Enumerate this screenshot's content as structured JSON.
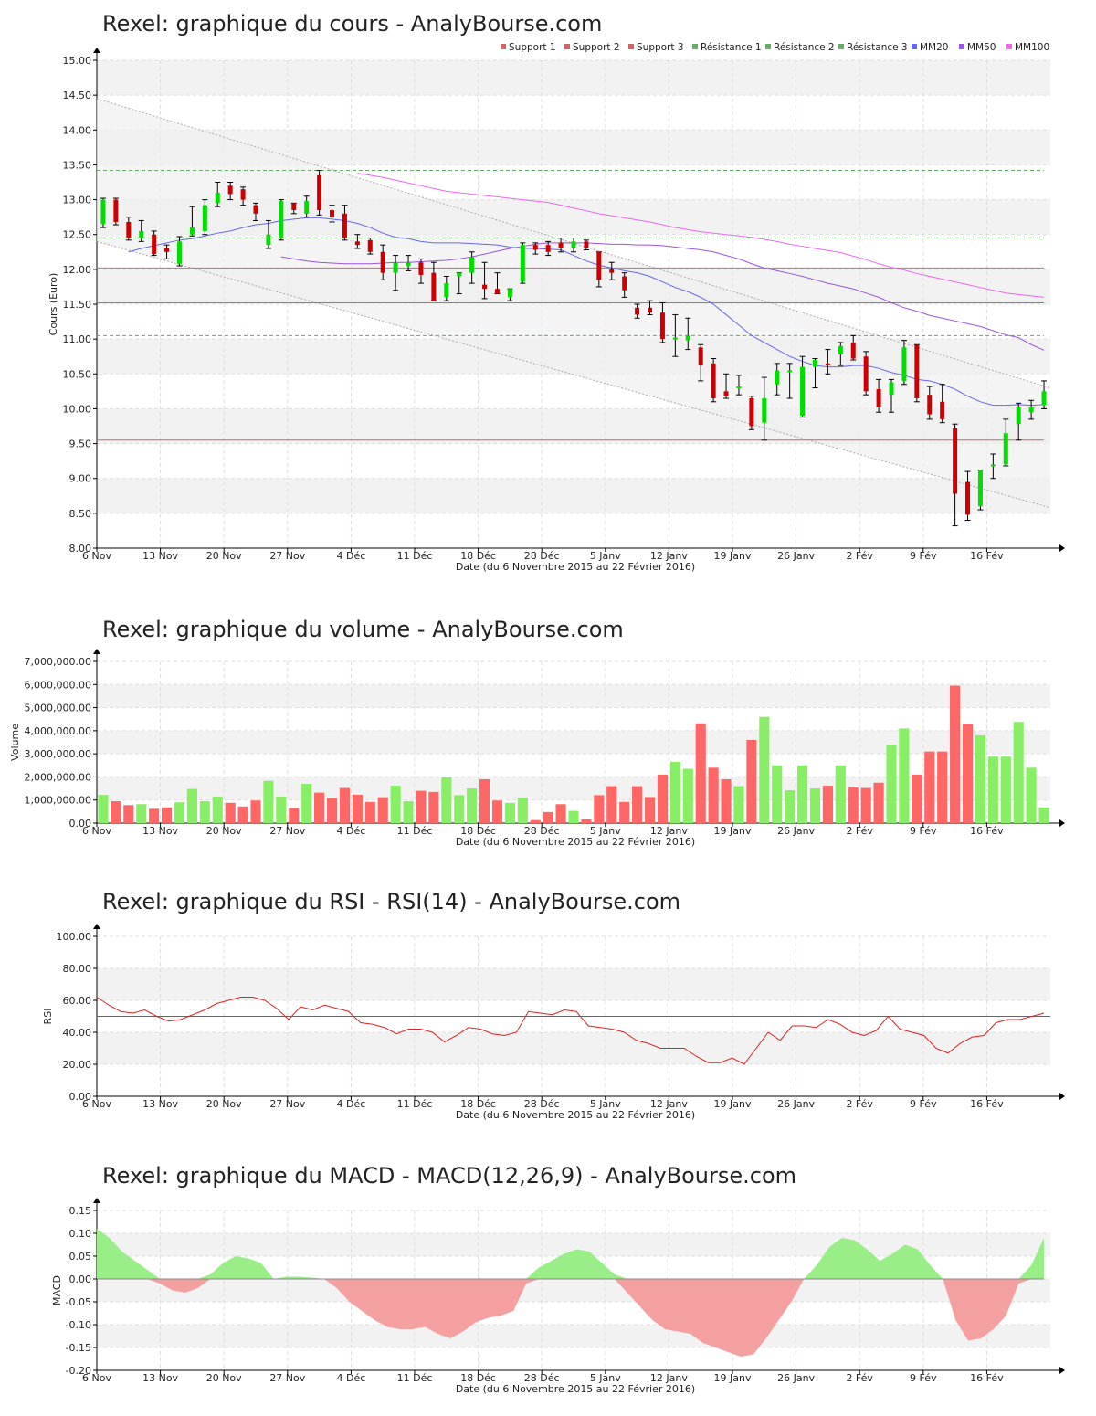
{
  "xaxis": {
    "tick_labels": [
      "6 Nov",
      "13 Nov",
      "20 Nov",
      "27 Nov",
      "4 Déc",
      "11 Déc",
      "18 Déc",
      "28 Déc",
      "5 Janv",
      "12 Janv",
      "19 Janv",
      "26 Janv",
      "2 Fév",
      "9 Fév",
      "16 Fév"
    ],
    "tick_index": [
      0,
      5,
      10,
      15,
      20,
      25,
      30,
      35,
      40,
      45,
      50,
      55,
      60,
      65,
      70
    ],
    "label": "Date (du 6 Novembre 2015 au 22 Février 2016)"
  },
  "colors": {
    "up": "#00dd00",
    "down": "#cc0000",
    "vol_up": "#88ee66",
    "vol_down": "#ff6666",
    "mm20": "#6666ee",
    "mm50": "#9955dd",
    "mm100": "#ee66ee",
    "support": "#cc6666",
    "resistance": "#66aa66",
    "rsi": "#dd2222",
    "macd_pos": "#99ee88",
    "macd_neg": "#f4a0a0"
  },
  "chart_data": [
    {
      "type": "candlestick",
      "title": "Rexel: graphique du cours - AnalyBourse.com",
      "ylabel": "Cours (Euro)",
      "ylim": [
        8,
        15
      ],
      "yticks": [
        "8.00",
        "8.50",
        "9.00",
        "9.50",
        "10.00",
        "10.50",
        "11.00",
        "11.50",
        "12.00",
        "12.50",
        "13.00",
        "13.50",
        "14.00",
        "14.50",
        "15.00"
      ],
      "legend": [
        "Support 1",
        "Support 2",
        "Support 3",
        "Résistance 1",
        "Résistance 2",
        "Résistance 3",
        "MM20",
        "MM50",
        "MM100"
      ],
      "legend_position": "top-right",
      "support_levels": [
        12.02,
        11.52,
        9.55
      ],
      "resistance_levels": [
        13.42,
        12.45,
        11.05
      ],
      "channel": {
        "upper": [
          14.45,
          10.3
        ],
        "lower": [
          12.4,
          8.58
        ]
      },
      "ohlc": [
        [
          12.65,
          13.02,
          12.6,
          13.0
        ],
        [
          13.0,
          13.02,
          12.64,
          12.68
        ],
        [
          12.68,
          12.75,
          12.42,
          12.45
        ],
        [
          12.45,
          12.7,
          12.4,
          12.55
        ],
        [
          12.5,
          12.55,
          12.2,
          12.22
        ],
        [
          12.3,
          12.35,
          12.15,
          12.25
        ],
        [
          12.08,
          12.47,
          12.05,
          12.4
        ],
        [
          12.5,
          12.9,
          12.48,
          12.6
        ],
        [
          12.55,
          13.0,
          12.5,
          12.92
        ],
        [
          12.95,
          13.25,
          12.9,
          13.1
        ],
        [
          13.2,
          13.25,
          13.0,
          13.08
        ],
        [
          13.15,
          13.18,
          12.92,
          13.0
        ],
        [
          12.92,
          12.95,
          12.7,
          12.8
        ],
        [
          12.35,
          12.7,
          12.3,
          12.5
        ],
        [
          12.45,
          13.0,
          12.42,
          12.98
        ],
        [
          12.95,
          12.95,
          12.8,
          12.85
        ],
        [
          12.8,
          13.05,
          12.75,
          12.98
        ],
        [
          13.35,
          13.42,
          12.78,
          12.85
        ],
        [
          12.85,
          12.92,
          12.68,
          12.75
        ],
        [
          12.8,
          12.92,
          12.42,
          12.45
        ],
        [
          12.4,
          12.5,
          12.3,
          12.35
        ],
        [
          12.42,
          12.45,
          12.22,
          12.25
        ],
        [
          12.25,
          12.35,
          11.85,
          11.95
        ],
        [
          11.95,
          12.2,
          11.7,
          12.1
        ],
        [
          12.05,
          12.2,
          11.98,
          12.1
        ],
        [
          12.1,
          12.15,
          11.8,
          11.92
        ],
        [
          11.95,
          12.1,
          11.55,
          11.55
        ],
        [
          11.6,
          11.9,
          11.55,
          11.8
        ],
        [
          11.9,
          11.95,
          11.65,
          11.95
        ],
        [
          11.95,
          12.25,
          11.8,
          12.18
        ],
        [
          11.78,
          12.1,
          11.58,
          11.72
        ],
        [
          11.72,
          11.95,
          11.65,
          11.65
        ],
        [
          11.6,
          11.72,
          11.55,
          11.72
        ],
        [
          11.82,
          12.38,
          11.8,
          12.35
        ],
        [
          12.35,
          12.38,
          12.22,
          12.28
        ],
        [
          12.35,
          12.4,
          12.2,
          12.25
        ],
        [
          12.38,
          12.45,
          12.25,
          12.3
        ],
        [
          12.3,
          12.45,
          12.25,
          12.4
        ],
        [
          12.4,
          12.42,
          12.28,
          12.3
        ],
        [
          12.25,
          12.25,
          11.75,
          11.85
        ],
        [
          12.0,
          12.1,
          11.85,
          11.95
        ],
        [
          11.9,
          11.95,
          11.6,
          11.7
        ],
        [
          11.45,
          11.5,
          11.3,
          11.35
        ],
        [
          11.45,
          11.55,
          11.35,
          11.38
        ],
        [
          11.38,
          11.52,
          10.95,
          11.0
        ],
        [
          11.0,
          11.35,
          10.75,
          11.02
        ],
        [
          10.98,
          11.3,
          10.85,
          11.05
        ],
        [
          10.88,
          10.92,
          10.4,
          10.62
        ],
        [
          10.65,
          10.72,
          10.1,
          10.15
        ],
        [
          10.25,
          10.5,
          10.15,
          10.18
        ],
        [
          10.3,
          10.48,
          10.2,
          10.32
        ],
        [
          10.15,
          10.18,
          9.7,
          9.75
        ],
        [
          9.8,
          10.45,
          9.55,
          10.15
        ],
        [
          10.35,
          10.65,
          10.2,
          10.55
        ],
        [
          10.55,
          10.65,
          10.15,
          10.55
        ],
        [
          9.9,
          10.75,
          9.88,
          10.6
        ],
        [
          10.6,
          10.72,
          10.3,
          10.7
        ],
        [
          10.65,
          10.85,
          10.5,
          10.62
        ],
        [
          10.78,
          10.95,
          10.62,
          10.9
        ],
        [
          10.95,
          11.05,
          10.7,
          10.72
        ],
        [
          10.75,
          10.82,
          10.2,
          10.25
        ],
        [
          10.28,
          10.42,
          9.95,
          10.02
        ],
        [
          10.2,
          10.42,
          9.95,
          10.38
        ],
        [
          10.4,
          10.98,
          10.35,
          10.88
        ],
        [
          10.92,
          10.92,
          10.1,
          10.15
        ],
        [
          10.2,
          10.32,
          9.85,
          9.92
        ],
        [
          10.1,
          10.35,
          9.8,
          9.85
        ],
        [
          9.72,
          9.78,
          8.32,
          8.78
        ],
        [
          8.95,
          9.1,
          8.4,
          8.48
        ],
        [
          8.6,
          9.12,
          8.55,
          9.12
        ],
        [
          9.2,
          9.35,
          9.0,
          9.2
        ],
        [
          9.2,
          9.85,
          9.18,
          9.65
        ],
        [
          9.78,
          10.08,
          9.55,
          10.02
        ],
        [
          9.95,
          10.12,
          9.85,
          10.02
        ],
        [
          10.05,
          10.4,
          10.0,
          10.25
        ]
      ],
      "mm20": [
        12.25,
        12.3,
        12.34,
        12.38,
        12.42,
        12.44,
        12.48,
        12.52,
        12.55,
        12.6,
        12.64,
        12.66,
        12.7,
        12.72,
        12.74,
        12.74,
        12.72,
        12.7,
        12.66,
        12.6,
        12.52,
        12.46,
        12.44,
        12.4,
        12.38,
        12.38,
        12.38,
        12.37,
        12.36,
        12.35,
        12.32,
        12.3,
        12.3,
        12.29,
        12.28,
        12.2,
        12.12,
        12.06,
        12.02,
        11.98,
        11.95,
        11.9,
        11.82,
        11.74,
        11.68,
        11.6,
        11.5,
        11.35,
        11.2,
        11.05,
        10.95,
        10.85,
        10.75,
        10.68,
        10.62,
        10.6,
        10.6,
        10.62,
        10.62,
        10.58,
        10.52,
        10.48,
        10.42,
        10.4,
        10.35,
        10.28,
        10.18,
        10.1,
        10.05,
        10.05,
        10.06,
        10.05,
        10.06
      ],
      "mm50": [
        12.18,
        12.15,
        12.12,
        12.1,
        12.09,
        12.08,
        12.08,
        12.08,
        12.09,
        12.1,
        12.1,
        12.11,
        12.12,
        12.13,
        12.15,
        12.18,
        12.22,
        12.26,
        12.3,
        12.33,
        12.36,
        12.38,
        12.38,
        12.38,
        12.38,
        12.37,
        12.36,
        12.36,
        12.35,
        12.35,
        12.34,
        12.32,
        12.3,
        12.28,
        12.25,
        12.2,
        12.15,
        12.08,
        12.02,
        11.98,
        11.94,
        11.9,
        11.85,
        11.8,
        11.76,
        11.72,
        11.66,
        11.6,
        11.52,
        11.45,
        11.4,
        11.34,
        11.3,
        11.26,
        11.22,
        11.18,
        11.12,
        11.06,
        11.02,
        10.92,
        10.84
      ],
      "mm100": [
        13.38,
        13.35,
        13.32,
        13.28,
        13.24,
        13.2,
        13.16,
        13.12,
        13.1,
        13.08,
        13.06,
        13.04,
        13.02,
        13.0,
        12.98,
        12.96,
        12.92,
        12.88,
        12.84,
        12.8,
        12.77,
        12.74,
        12.71,
        12.68,
        12.64,
        12.6,
        12.57,
        12.54,
        12.52,
        12.5,
        12.48,
        12.46,
        12.43,
        12.4,
        12.36,
        12.33,
        12.3,
        12.27,
        12.24,
        12.19,
        12.14,
        12.08,
        12.03,
        11.99,
        11.94,
        11.9,
        11.86,
        11.82,
        11.78,
        11.74,
        11.7,
        11.66,
        11.64,
        11.62,
        11.6
      ]
    },
    {
      "type": "bar",
      "title": "Rexel: graphique du volume - AnalyBourse.com",
      "ylabel": "Volume",
      "ylim": [
        0,
        7000000
      ],
      "yticks": [
        "0.00",
        "1,000,000.00",
        "2,000,000.00",
        "3,000,000.00",
        "4,000,000.00",
        "5,000,000.00",
        "6,000,000.00",
        "7,000,000.00"
      ],
      "values": [
        1220000,
        950000,
        780000,
        820000,
        620000,
        680000,
        900000,
        1480000,
        950000,
        1150000,
        880000,
        720000,
        980000,
        1830000,
        1150000,
        650000,
        1700000,
        1320000,
        1080000,
        1520000,
        1230000,
        920000,
        1120000,
        1620000,
        950000,
        1400000,
        1350000,
        1980000,
        1210000,
        1500000,
        1900000,
        980000,
        880000,
        1110000,
        130000,
        480000,
        820000,
        530000,
        170000,
        1210000,
        1600000,
        920000,
        1600000,
        1130000,
        2100000,
        2650000,
        2350000,
        4320000,
        2400000,
        1900000,
        1600000,
        3600000,
        4600000,
        2500000,
        1420000,
        2500000,
        1500000,
        1620000,
        2500000,
        1540000,
        1520000,
        1750000,
        3380000,
        4100000,
        2100000,
        3100000,
        3100000,
        5950000,
        4300000,
        3800000,
        2880000,
        2880000,
        4380000,
        2400000,
        680000
      ],
      "colors_by_candle": true
    },
    {
      "type": "line",
      "title": "Rexel: graphique du RSI - RSI(14) - AnalyBourse.com",
      "ylabel": "RSI",
      "ylim": [
        0,
        100
      ],
      "yticks": [
        "0.00",
        "20.00",
        "40.00",
        "60.00",
        "80.00",
        "100.00"
      ],
      "reference_line": 50,
      "values": [
        62,
        57,
        53,
        52,
        54,
        50,
        47,
        48,
        51,
        54,
        58,
        60,
        62,
        62,
        60,
        55,
        48,
        56,
        54,
        57,
        55,
        53,
        46,
        45,
        43,
        39,
        42,
        42,
        40,
        34,
        38,
        43,
        42,
        39,
        38,
        40,
        53,
        52,
        51,
        54,
        53,
        44,
        43,
        42,
        40,
        35,
        33,
        30,
        30,
        30,
        25,
        21,
        21,
        24,
        20,
        30,
        40,
        35,
        44,
        44,
        43,
        48,
        45,
        40,
        38,
        41,
        50,
        42,
        40,
        38,
        30,
        27,
        33,
        37,
        38,
        46,
        48,
        48,
        50,
        52
      ]
    },
    {
      "type": "area",
      "title": "Rexel: graphique du MACD - MACD(12,26,9) - AnalyBourse.com",
      "ylabel": "MACD",
      "ylim": [
        -0.2,
        0.15
      ],
      "yticks": [
        "-0.20",
        "-0.15",
        "-0.10",
        "-0.05",
        "0.00",
        "0.05",
        "0.10",
        "0.15"
      ],
      "values": [
        0.11,
        0.09,
        0.06,
        0.04,
        0.02,
        -0.01,
        -0.025,
        -0.03,
        -0.02,
        0.01,
        0.035,
        0.05,
        0.045,
        0.035,
        0.0,
        0.005,
        0.005,
        0.003,
        0.0,
        -0.02,
        -0.05,
        -0.07,
        -0.09,
        -0.105,
        -0.11,
        -0.11,
        -0.105,
        -0.12,
        -0.13,
        -0.115,
        -0.095,
        -0.085,
        -0.08,
        -0.07,
        -0.01,
        0.025,
        0.04,
        0.055,
        0.065,
        0.06,
        0.035,
        0.01,
        -0.03,
        -0.06,
        -0.09,
        -0.11,
        -0.115,
        -0.12,
        -0.14,
        -0.15,
        -0.16,
        -0.17,
        -0.165,
        -0.13,
        -0.09,
        -0.05,
        0.0,
        0.03,
        0.07,
        0.09,
        0.085,
        0.065,
        0.04,
        0.055,
        0.075,
        0.065,
        0.03,
        0.0,
        -0.09,
        -0.135,
        -0.13,
        -0.11,
        -0.08,
        -0.01,
        0.03,
        0.09
      ]
    }
  ]
}
